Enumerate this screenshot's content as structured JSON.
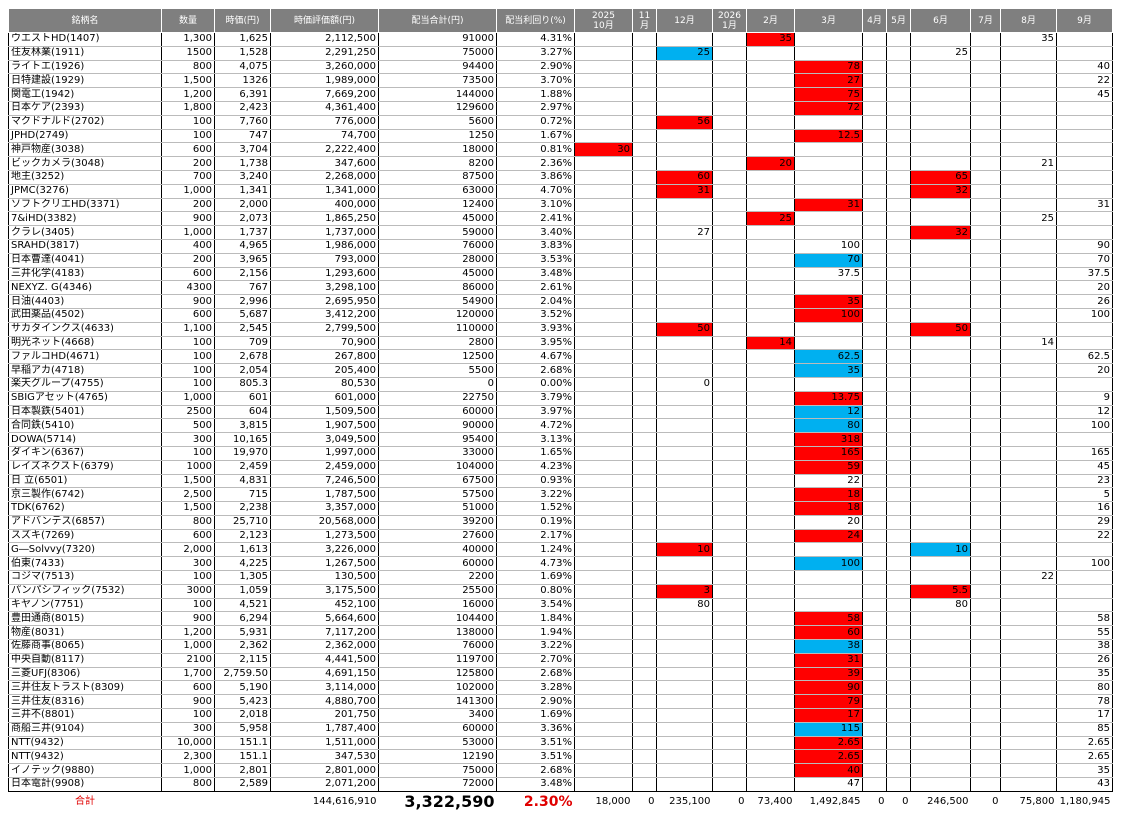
{
  "table": {
    "header": [
      "銘柄名",
      "数量",
      "時価(円)",
      "時価評価額(円)",
      "配当合計(円)",
      "配当利回り(%)",
      "2025\n10月",
      "11\n月",
      "12月",
      "2026\n1月",
      "2月",
      "3月",
      "4月",
      "5月",
      "6月",
      "7月",
      "8月",
      "9月"
    ],
    "rows": [
      [
        "ウエストHD(1407)",
        "1,300",
        "1,625",
        "2,112,500",
        "91000",
        "4.31%",
        null,
        null,
        null,
        null,
        "35",
        null,
        null,
        null,
        null,
        null,
        "35",
        null
      ],
      [
        "住友林業(1911)",
        "1500",
        "1,528",
        "2,291,250",
        "75000",
        "3.27%",
        null,
        null,
        "25",
        null,
        null,
        null,
        null,
        null,
        "25",
        null,
        null,
        null
      ],
      [
        "ライトエ(1926)",
        "800",
        "4,075",
        "3,260,000",
        "94400",
        "2.90%",
        null,
        null,
        null,
        null,
        null,
        "78",
        null,
        null,
        null,
        null,
        null,
        "40"
      ],
      [
        "日特建設(1929)",
        "1,500",
        "1326",
        "1,989,000",
        "73500",
        "3.70%",
        null,
        null,
        null,
        null,
        null,
        "27",
        null,
        null,
        null,
        null,
        null,
        "22"
      ],
      [
        "関電工(1942)",
        "1,200",
        "6,391",
        "7,669,200",
        "144000",
        "1.88%",
        null,
        null,
        null,
        null,
        null,
        "75",
        null,
        null,
        null,
        null,
        null,
        "45"
      ],
      [
        "日本ケア(2393)",
        "1,800",
        "2,423",
        "4,361,400",
        "129600",
        "2.97%",
        null,
        null,
        null,
        null,
        null,
        "72",
        null,
        null,
        null,
        null,
        null,
        null
      ],
      [
        "マクドナルド(2702)",
        "100",
        "7,760",
        "776,000",
        "5600",
        "0.72%",
        null,
        null,
        "56",
        null,
        null,
        null,
        null,
        null,
        null,
        null,
        null,
        null
      ],
      [
        "JPHD(2749)",
        "100",
        "747",
        "74,700",
        "1250",
        "1.67%",
        null,
        null,
        null,
        null,
        null,
        "12.5",
        null,
        null,
        null,
        null,
        null,
        null
      ],
      [
        "神戸物産(3038)",
        "600",
        "3,704",
        "2,222,400",
        "18000",
        "0.81%",
        "30",
        null,
        null,
        null,
        null,
        null,
        null,
        null,
        null,
        null,
        null,
        null
      ],
      [
        "ビックカメラ(3048)",
        "200",
        "1,738",
        "347,600",
        "8200",
        "2.36%",
        null,
        null,
        null,
        null,
        "20",
        null,
        null,
        null,
        null,
        null,
        "21",
        null
      ],
      [
        "地主(3252)",
        "700",
        "3,240",
        "2,268,000",
        "87500",
        "3.86%",
        null,
        null,
        "60",
        null,
        null,
        null,
        null,
        null,
        "65",
        null,
        null,
        null
      ],
      [
        "JPMC(3276)",
        "1,000",
        "1,341",
        "1,341,000",
        "63000",
        "4.70%",
        null,
        null,
        "31",
        null,
        null,
        null,
        null,
        null,
        "32",
        null,
        null,
        null
      ],
      [
        "ソフトクリエHD(3371)",
        "200",
        "2,000",
        "400,000",
        "12400",
        "3.10%",
        null,
        null,
        null,
        null,
        null,
        "31",
        null,
        null,
        null,
        null,
        null,
        "31"
      ],
      [
        "7&iHD(3382)",
        "900",
        "2,073",
        "1,865,250",
        "45000",
        "2.41%",
        null,
        null,
        null,
        null,
        "25",
        null,
        null,
        null,
        null,
        null,
        "25",
        null
      ],
      [
        "クラレ(3405)",
        "1,000",
        "1,737",
        "1,737,000",
        "59000",
        "3.40%",
        null,
        null,
        "27",
        null,
        null,
        null,
        null,
        null,
        "32",
        null,
        null,
        null
      ],
      [
        "SRAHD(3817)",
        "400",
        "4,965",
        "1,986,000",
        "76000",
        "3.83%",
        null,
        null,
        null,
        null,
        null,
        "100",
        null,
        null,
        null,
        null,
        null,
        "90"
      ],
      [
        "日本曹達(4041)",
        "200",
        "3,965",
        "793,000",
        "28000",
        "3.53%",
        null,
        null,
        null,
        null,
        null,
        "70",
        null,
        null,
        null,
        null,
        null,
        "70"
      ],
      [
        "三井化学(4183)",
        "600",
        "2,156",
        "1,293,600",
        "45000",
        "3.48%",
        null,
        null,
        null,
        null,
        null,
        "37.5",
        null,
        null,
        null,
        null,
        null,
        "37.5"
      ],
      [
        "NEXYZ. G(4346)",
        "4300",
        "767",
        "3,298,100",
        "86000",
        "2.61%",
        null,
        null,
        null,
        null,
        null,
        null,
        null,
        null,
        null,
        null,
        null,
        "20"
      ],
      [
        "日油(4403)",
        "900",
        "2,996",
        "2,695,950",
        "54900",
        "2.04%",
        null,
        null,
        null,
        null,
        null,
        "35",
        null,
        null,
        null,
        null,
        null,
        "26"
      ],
      [
        "武田薬品(4502)",
        "600",
        "5,687",
        "3,412,200",
        "120000",
        "3.52%",
        null,
        null,
        null,
        null,
        null,
        "100",
        null,
        null,
        null,
        null,
        null,
        "100"
      ],
      [
        "サカタインクス(4633)",
        "1,100",
        "2,545",
        "2,799,500",
        "110000",
        "3.93%",
        null,
        null,
        "50",
        null,
        null,
        null,
        null,
        null,
        "50",
        null,
        null,
        null
      ],
      [
        "明光ネット(4668)",
        "100",
        "709",
        "70,900",
        "2800",
        "3.95%",
        null,
        null,
        null,
        null,
        "14",
        null,
        null,
        null,
        null,
        null,
        "14",
        null
      ],
      [
        "ファルコHD(4671)",
        "100",
        "2,678",
        "267,800",
        "12500",
        "4.67%",
        null,
        null,
        null,
        null,
        null,
        "62.5",
        null,
        null,
        null,
        null,
        null,
        "62.5"
      ],
      [
        "早稲アカ(4718)",
        "100",
        "2,054",
        "205,400",
        "5500",
        "2.68%",
        null,
        null,
        null,
        null,
        null,
        "35",
        null,
        null,
        null,
        null,
        null,
        "20"
      ],
      [
        "楽天グループ(4755)",
        "100",
        "805.3",
        "80,530",
        "0",
        "0.00%",
        null,
        null,
        "0",
        null,
        null,
        null,
        null,
        null,
        null,
        null,
        null,
        null
      ],
      [
        "SBIGアセット(4765)",
        "1,000",
        "601",
        "601,000",
        "22750",
        "3.79%",
        null,
        null,
        null,
        null,
        null,
        "13.75",
        null,
        null,
        null,
        null,
        null,
        "9"
      ],
      [
        "日本製鉄(5401)",
        "2500",
        "604",
        "1,509,500",
        "60000",
        "3.97%",
        null,
        null,
        null,
        null,
        null,
        "12",
        null,
        null,
        null,
        null,
        null,
        "12"
      ],
      [
        "合同鉄(5410)",
        "500",
        "3,815",
        "1,907,500",
        "90000",
        "4.72%",
        null,
        null,
        null,
        null,
        null,
        "80",
        null,
        null,
        null,
        null,
        null,
        "100"
      ],
      [
        "DOWA(5714)",
        "300",
        "10,165",
        "3,049,500",
        "95400",
        "3.13%",
        null,
        null,
        null,
        null,
        null,
        "318",
        null,
        null,
        null,
        null,
        null,
        null
      ],
      [
        "ダイキン(6367)",
        "100",
        "19,970",
        "1,997,000",
        "33000",
        "1.65%",
        null,
        null,
        null,
        null,
        null,
        "165",
        null,
        null,
        null,
        null,
        null,
        "165"
      ],
      [
        "レイズネクスト(6379)",
        "1000",
        "2,459",
        "2,459,000",
        "104000",
        "4.23%",
        null,
        null,
        null,
        null,
        null,
        "59",
        null,
        null,
        null,
        null,
        null,
        "45"
      ],
      [
        "日 立(6501)",
        "1,500",
        "4,831",
        "7,246,500",
        "67500",
        "0.93%",
        null,
        null,
        null,
        null,
        null,
        "22",
        null,
        null,
        null,
        null,
        null,
        "23"
      ],
      [
        "京三製作(6742)",
        "2,500",
        "715",
        "1,787,500",
        "57500",
        "3.22%",
        null,
        null,
        null,
        null,
        null,
        "18",
        null,
        null,
        null,
        null,
        null,
        "5"
      ],
      [
        "TDK(6762)",
        "1,500",
        "2,238",
        "3,357,000",
        "51000",
        "1.52%",
        null,
        null,
        null,
        null,
        null,
        "18",
        null,
        null,
        null,
        null,
        null,
        "16"
      ],
      [
        "アドバンテス(6857)",
        "800",
        "25,710",
        "20,568,000",
        "39200",
        "0.19%",
        null,
        null,
        null,
        null,
        null,
        "20",
        null,
        null,
        null,
        null,
        null,
        "29"
      ],
      [
        "スズキ(7269)",
        "600",
        "2,123",
        "1,273,500",
        "27600",
        "2.17%",
        null,
        null,
        null,
        null,
        null,
        "24",
        null,
        null,
        null,
        null,
        null,
        "22"
      ],
      [
        "G―Solvvy(7320)",
        "2,000",
        "1,613",
        "3,226,000",
        "40000",
        "1.24%",
        null,
        null,
        "10",
        null,
        null,
        null,
        null,
        null,
        "10",
        null,
        null,
        null
      ],
      [
        "伯東(7433)",
        "300",
        "4,225",
        "1,267,500",
        "60000",
        "4.73%",
        null,
        null,
        null,
        null,
        null,
        "100",
        null,
        null,
        null,
        null,
        null,
        "100"
      ],
      [
        "コジマ(7513)",
        "100",
        "1,305",
        "130,500",
        "2200",
        "1.69%",
        null,
        null,
        null,
        null,
        null,
        null,
        null,
        null,
        null,
        null,
        "22",
        null
      ],
      [
        "パンパシフィック(7532)",
        "3000",
        "1,059",
        "3,175,500",
        "25500",
        "0.80%",
        null,
        null,
        "3",
        null,
        null,
        null,
        null,
        null,
        "5.5",
        null,
        null,
        null
      ],
      [
        "キヤノン(7751)",
        "100",
        "4,521",
        "452,100",
        "16000",
        "3.54%",
        null,
        null,
        "80",
        null,
        null,
        null,
        null,
        null,
        "80",
        null,
        null,
        null
      ],
      [
        "豊田通商(8015)",
        "900",
        "6,294",
        "5,664,600",
        "104400",
        "1.84%",
        null,
        null,
        null,
        null,
        null,
        "58",
        null,
        null,
        null,
        null,
        null,
        "58"
      ],
      [
        "物産(8031)",
        "1,200",
        "5,931",
        "7,117,200",
        "138000",
        "1.94%",
        null,
        null,
        null,
        null,
        null,
        "60",
        null,
        null,
        null,
        null,
        null,
        "55"
      ],
      [
        "佐藤商事(8065)",
        "1,000",
        "2,362",
        "2,362,000",
        "76000",
        "3.22%",
        null,
        null,
        null,
        null,
        null,
        "38",
        null,
        null,
        null,
        null,
        null,
        "38"
      ],
      [
        "中央自動(8117)",
        "2100",
        "2,115",
        "4,441,500",
        "119700",
        "2.70%",
        null,
        null,
        null,
        null,
        null,
        "31",
        null,
        null,
        null,
        null,
        null,
        "26"
      ],
      [
        "三菱UFJ(8306)",
        "1,700",
        "2,759.50",
        "4,691,150",
        "125800",
        "2.68%",
        null,
        null,
        null,
        null,
        null,
        "39",
        null,
        null,
        null,
        null,
        null,
        "35"
      ],
      [
        "三井住友トラスト(8309)",
        "600",
        "5,190",
        "3,114,000",
        "102000",
        "3.28%",
        null,
        null,
        null,
        null,
        null,
        "90",
        null,
        null,
        null,
        null,
        null,
        "80"
      ],
      [
        "三井住友(8316)",
        "900",
        "5,423",
        "4,880,700",
        "141300",
        "2.90%",
        null,
        null,
        null,
        null,
        null,
        "79",
        null,
        null,
        null,
        null,
        null,
        "78"
      ],
      [
        "三井不(8801)",
        "100",
        "2,018",
        "201,750",
        "3400",
        "1.69%",
        null,
        null,
        null,
        null,
        null,
        "17",
        null,
        null,
        null,
        null,
        null,
        "17"
      ],
      [
        "商船三井(9104)",
        "300",
        "5,958",
        "1,787,400",
        "60000",
        "3.36%",
        null,
        null,
        null,
        null,
        null,
        "115",
        null,
        null,
        null,
        null,
        null,
        "85"
      ],
      [
        "NTT(9432)",
        "10,000",
        "151.1",
        "1,511,000",
        "53000",
        "3.51%",
        null,
        null,
        null,
        null,
        null,
        "2.65",
        null,
        null,
        null,
        null,
        null,
        "2.65"
      ],
      [
        "NTT(9432)",
        "2,300",
        "151.1",
        "347,530",
        "12190",
        "3.51%",
        null,
        null,
        null,
        null,
        null,
        "2.65",
        null,
        null,
        null,
        null,
        null,
        "2.65"
      ],
      [
        "イノテック(9880)",
        "1,000",
        "2,801",
        "2,801,000",
        "75000",
        "2.68%",
        null,
        null,
        null,
        null,
        null,
        "40",
        null,
        null,
        null,
        null,
        null,
        "35"
      ],
      [
        "日本電計(9908)",
        "800",
        "2,589",
        "2,071,200",
        "72000",
        "3.48%",
        null,
        null,
        null,
        null,
        null,
        "47",
        null,
        null,
        null,
        null,
        null,
        "43"
      ]
    ],
    "fills": [
      {
        "10": "#ff0000"
      },
      {
        "8": "#00b0f0"
      },
      {
        "11": "#ff0000"
      },
      {
        "11": "#ff0000"
      },
      {
        "11": "#ff0000"
      },
      {
        "11": "#ff0000"
      },
      {
        "8": "#ff0000"
      },
      {
        "11": "#ff0000"
      },
      {
        "6": "#ff0000"
      },
      {
        "10": "#ff0000"
      },
      {
        "8": "#ff0000",
        "14": "#ff0000"
      },
      {
        "8": "#ff0000",
        "14": "#ff0000"
      },
      {
        "11": "#ff0000"
      },
      {
        "10": "#ff0000"
      },
      {
        "14": "#ff0000"
      },
      {},
      {
        "11": "#00b0f0"
      },
      {},
      {},
      {
        "11": "#ff0000"
      },
      {
        "11": "#ff0000"
      },
      {
        "8": "#ff0000",
        "14": "#ff0000"
      },
      {
        "10": "#ff0000"
      },
      {
        "11": "#00b0f0"
      },
      {
        "11": "#00b0f0"
      },
      {},
      {
        "11": "#ff0000"
      },
      {
        "11": "#00b0f0"
      },
      {
        "11": "#00b0f0"
      },
      {
        "11": "#ff0000"
      },
      {
        "11": "#ff0000"
      },
      {
        "11": "#ff0000"
      },
      {},
      {
        "11": "#ff0000"
      },
      {
        "11": "#ff0000"
      },
      {},
      {
        "11": "#ff0000"
      },
      {
        "8": "#ff0000",
        "14": "#00b0f0"
      },
      {
        "11": "#00b0f0"
      },
      {},
      {
        "8": "#ff0000",
        "14": "#ff0000"
      },
      {},
      {
        "11": "#ff0000"
      },
      {
        "11": "#ff0000"
      },
      {
        "11": "#00b0f0"
      },
      {
        "11": "#ff0000"
      },
      {
        "11": "#ff0000"
      },
      {
        "11": "#ff0000"
      },
      {
        "11": "#ff0000"
      },
      {
        "11": "#ff0000"
      },
      {
        "11": "#00b0f0"
      },
      {
        "11": "#ff0000"
      },
      {
        "11": "#ff0000"
      },
      {
        "11": "#ff0000"
      },
      {}
    ],
    "footer": [
      "合計",
      null,
      null,
      "144,616,910",
      "3,322,590",
      "2.30%",
      "18,000",
      "0",
      "235,100",
      "0",
      "73,400",
      "1,492,845",
      "0",
      "0",
      "246,500",
      "0",
      "75,800",
      "1,180,945"
    ]
  }
}
